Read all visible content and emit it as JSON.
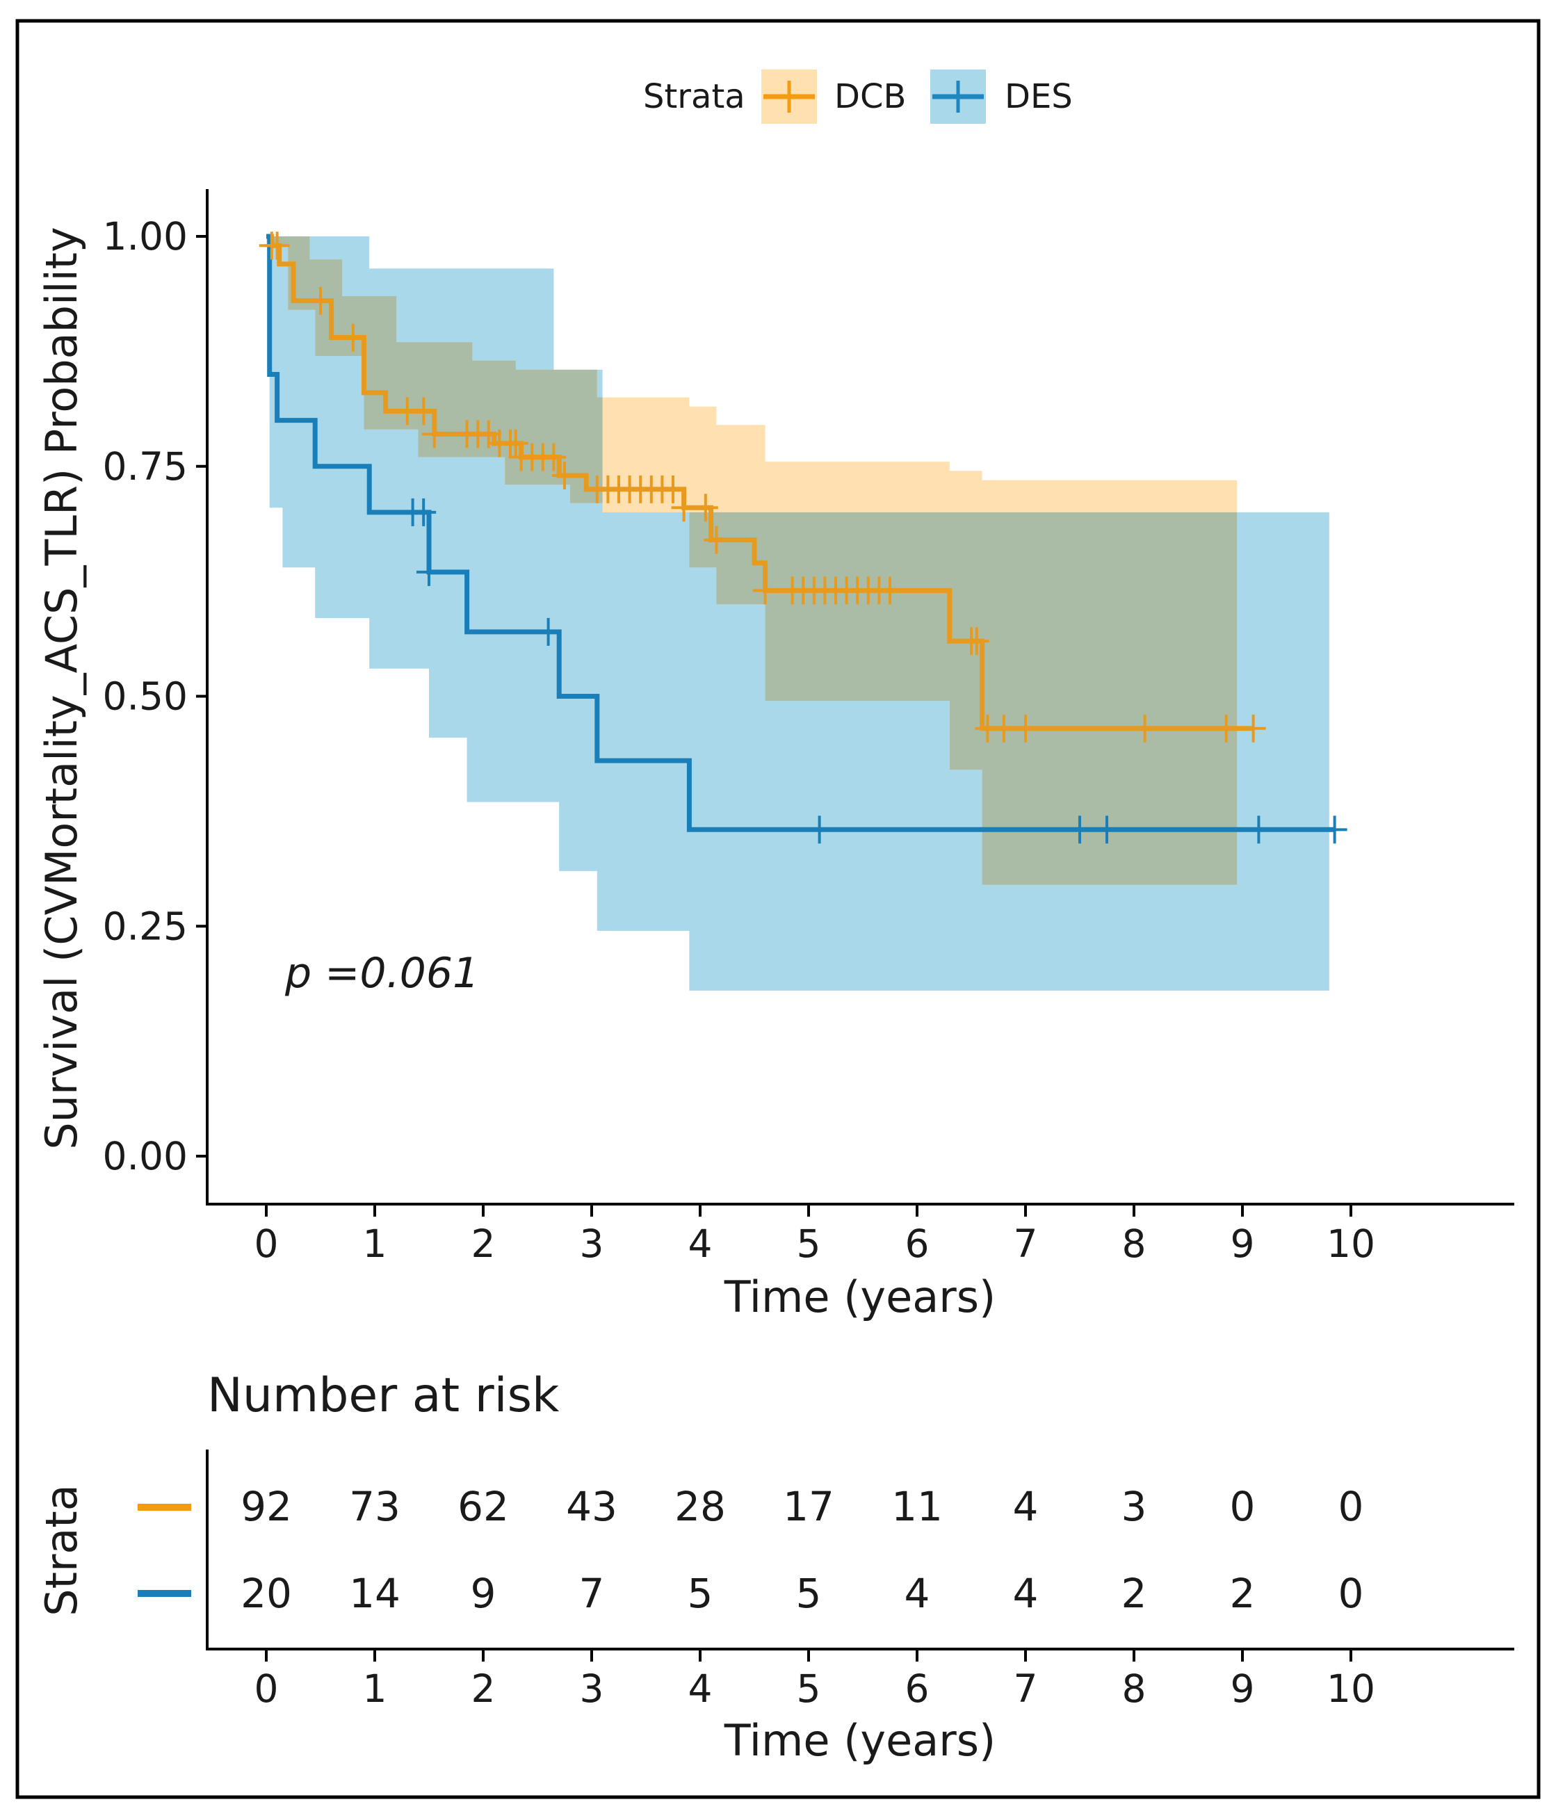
{
  "chart_data": {
    "type": "line",
    "subtype": "kaplan-meier",
    "legend": {
      "title": "Strata",
      "position": "top",
      "items": [
        {
          "name": "DCB",
          "color": "#F39C12",
          "band": "#FFE0B0"
        },
        {
          "name": "DES",
          "color": "#1F86C0",
          "band": "#A9D8EA"
        }
      ]
    },
    "overlap_band_color": "#AABCA6",
    "xlabel": "Time (years)",
    "ylabel": "Survival (CVMortality_ACS_TLR)  Probability",
    "xlim": [
      -0.55,
      11.5
    ],
    "ylim": [
      -0.05,
      1.05
    ],
    "xticks": [
      0,
      1,
      2,
      3,
      4,
      5,
      6,
      7,
      8,
      9,
      10
    ],
    "yticks": [
      1.0,
      0.75,
      0.5,
      0.25,
      0.0
    ],
    "ytick_labels": [
      "1.00",
      "0.75",
      "0.50",
      "0.25",
      "0.00"
    ],
    "annotation": {
      "text": "p =0.061",
      "x": 0.2,
      "y": 0.2
    },
    "series": [
      {
        "name": "DCB",
        "color": "#E89A1F",
        "steps": [
          [
            0,
            1.0
          ],
          [
            0.05,
            0.99
          ],
          [
            0.12,
            0.97
          ],
          [
            0.25,
            0.93
          ],
          [
            0.6,
            0.89
          ],
          [
            0.9,
            0.83
          ],
          [
            1.1,
            0.81
          ],
          [
            1.55,
            0.785
          ],
          [
            2.1,
            0.775
          ],
          [
            2.35,
            0.76
          ],
          [
            2.7,
            0.74
          ],
          [
            2.95,
            0.725
          ],
          [
            3.85,
            0.705
          ],
          [
            4.1,
            0.67
          ],
          [
            4.5,
            0.645
          ],
          [
            4.6,
            0.615
          ],
          [
            6.3,
            0.56
          ],
          [
            6.6,
            0.465
          ],
          [
            9.1,
            0.465
          ]
        ],
        "ci_upper": [
          [
            0,
            1.0
          ],
          [
            0.4,
            0.975
          ],
          [
            0.7,
            0.935
          ],
          [
            1.2,
            0.885
          ],
          [
            1.9,
            0.865
          ],
          [
            2.3,
            0.855
          ],
          [
            3.05,
            0.825
          ],
          [
            3.9,
            0.815
          ],
          [
            4.15,
            0.795
          ],
          [
            4.6,
            0.755
          ],
          [
            6.3,
            0.745
          ],
          [
            6.6,
            0.735
          ],
          [
            8.95,
            0.735
          ]
        ],
        "ci_lower": [
          [
            0,
            0.99
          ],
          [
            0.2,
            0.92
          ],
          [
            0.45,
            0.87
          ],
          [
            0.9,
            0.79
          ],
          [
            1.4,
            0.76
          ],
          [
            2.2,
            0.73
          ],
          [
            2.8,
            0.71
          ],
          [
            3.1,
            0.7
          ],
          [
            3.9,
            0.64
          ],
          [
            4.15,
            0.6
          ],
          [
            4.6,
            0.495
          ],
          [
            6.3,
            0.42
          ],
          [
            6.6,
            0.295
          ],
          [
            8.95,
            0.295
          ]
        ],
        "censor_times": [
          0.05,
          0.1,
          0.5,
          0.8,
          1.3,
          1.45,
          1.55,
          1.85,
          1.95,
          2.05,
          2.15,
          2.25,
          2.3,
          2.35,
          2.45,
          2.55,
          2.65,
          2.75,
          3.05,
          3.15,
          3.25,
          3.35,
          3.45,
          3.55,
          3.65,
          3.75,
          3.85,
          4.05,
          4.15,
          4.6,
          4.85,
          4.95,
          5.05,
          5.15,
          5.25,
          5.35,
          5.45,
          5.55,
          5.65,
          5.75,
          6.5,
          6.55,
          6.65,
          6.8,
          7.0,
          8.1,
          8.85,
          9.1
        ]
      },
      {
        "name": "DES",
        "color": "#1A7FB8",
        "steps": [
          [
            0,
            1.0
          ],
          [
            0.03,
            0.85
          ],
          [
            0.1,
            0.8
          ],
          [
            0.45,
            0.75
          ],
          [
            0.95,
            0.7
          ],
          [
            1.5,
            0.635
          ],
          [
            1.85,
            0.57
          ],
          [
            2.7,
            0.5
          ],
          [
            3.05,
            0.43
          ],
          [
            3.9,
            0.355
          ],
          [
            9.85,
            0.355
          ]
        ],
        "ci_upper": [
          [
            0,
            1.0
          ],
          [
            0.95,
            0.965
          ],
          [
            2.65,
            0.855
          ],
          [
            3.1,
            0.7
          ],
          [
            9.8,
            0.7
          ]
        ],
        "ci_lower": [
          [
            0,
            1.0
          ],
          [
            0.03,
            0.705
          ],
          [
            0.15,
            0.64
          ],
          [
            0.45,
            0.585
          ],
          [
            0.95,
            0.53
          ],
          [
            1.5,
            0.455
          ],
          [
            1.85,
            0.385
          ],
          [
            2.7,
            0.31
          ],
          [
            3.05,
            0.245
          ],
          [
            3.9,
            0.18
          ],
          [
            9.8,
            0.18
          ]
        ],
        "censor_times": [
          1.35,
          1.45,
          1.5,
          2.6,
          5.1,
          7.5,
          7.75,
          9.15,
          9.85
        ]
      }
    ],
    "risk_table": {
      "title": "Number at risk",
      "ylabel": "Strata",
      "xlabel": "Time (years)",
      "times": [
        0,
        1,
        2,
        3,
        4,
        5,
        6,
        7,
        8,
        9,
        10
      ],
      "rows": [
        {
          "name": "DCB",
          "color": "#F39C12",
          "values": [
            "92",
            "73",
            "62",
            "43",
            "28",
            "17",
            "11",
            "4",
            "3",
            "0",
            "0"
          ]
        },
        {
          "name": "DES",
          "color": "#1A7FB8",
          "values": [
            "20",
            "14",
            "9",
            "7",
            "5",
            "5",
            "4",
            "4",
            "2",
            "2",
            "0"
          ]
        }
      ]
    }
  }
}
